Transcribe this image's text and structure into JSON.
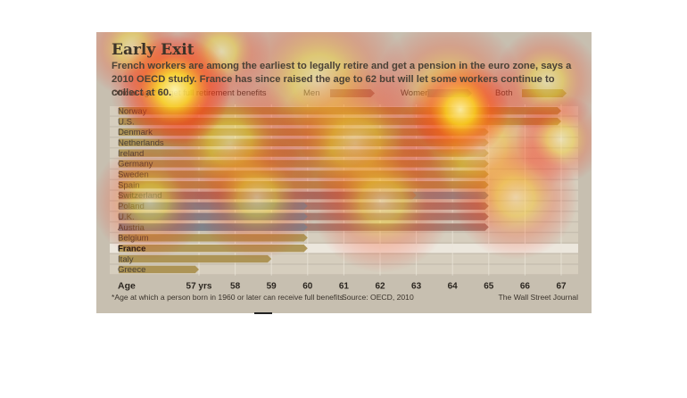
{
  "chart_data": {
    "type": "bar",
    "title": "Early Exit",
    "subtitle": "French workers are among the earliest to legally retire and get a pension in the euro zone, says a 2010 OECD study. France has since raised the age to 62 but will let some workers continue to collect at 60.",
    "legend_label": "Official age* to get full retirement benefits",
    "legend": [
      "Men",
      "Women",
      "Both"
    ],
    "xlabel": "Age",
    "x_ticks": [
      "57 yrs",
      "58",
      "59",
      "60",
      "61",
      "62",
      "63",
      "64",
      "65",
      "66",
      "67"
    ],
    "xlim": [
      57,
      67
    ],
    "categories": [
      "Norway",
      "U.S.",
      "Denmark",
      "Netherlands",
      "Ireland",
      "Germany",
      "Sweden",
      "Spain",
      "Switzerland",
      "Poland",
      "U.K.",
      "Austria",
      "Belgium",
      "France",
      "Italy",
      "Greece"
    ],
    "highlight": "France",
    "series": [
      {
        "name": "Men",
        "values": [
          null,
          null,
          null,
          null,
          null,
          null,
          null,
          null,
          63,
          65,
          65,
          65,
          null,
          null,
          null,
          null
        ]
      },
      {
        "name": "Women",
        "values": [
          null,
          null,
          null,
          null,
          null,
          null,
          null,
          null,
          65,
          60,
          60,
          60,
          null,
          null,
          null,
          null
        ]
      },
      {
        "name": "Both",
        "values": [
          67,
          67,
          65,
          65,
          65,
          65,
          65,
          65,
          null,
          null,
          null,
          null,
          60,
          60,
          59,
          57
        ]
      }
    ],
    "footnote": "*Age at which a person born in 1960 or later can receive full benefits",
    "source": "Source: OECD, 2010",
    "credit": "The Wall Street Journal"
  },
  "colors": {
    "both": "#a88e4a",
    "men": "#9c776a",
    "women": "#7d858c",
    "row_band": "#d6cebe",
    "highlight_row": "#ece7dd"
  }
}
